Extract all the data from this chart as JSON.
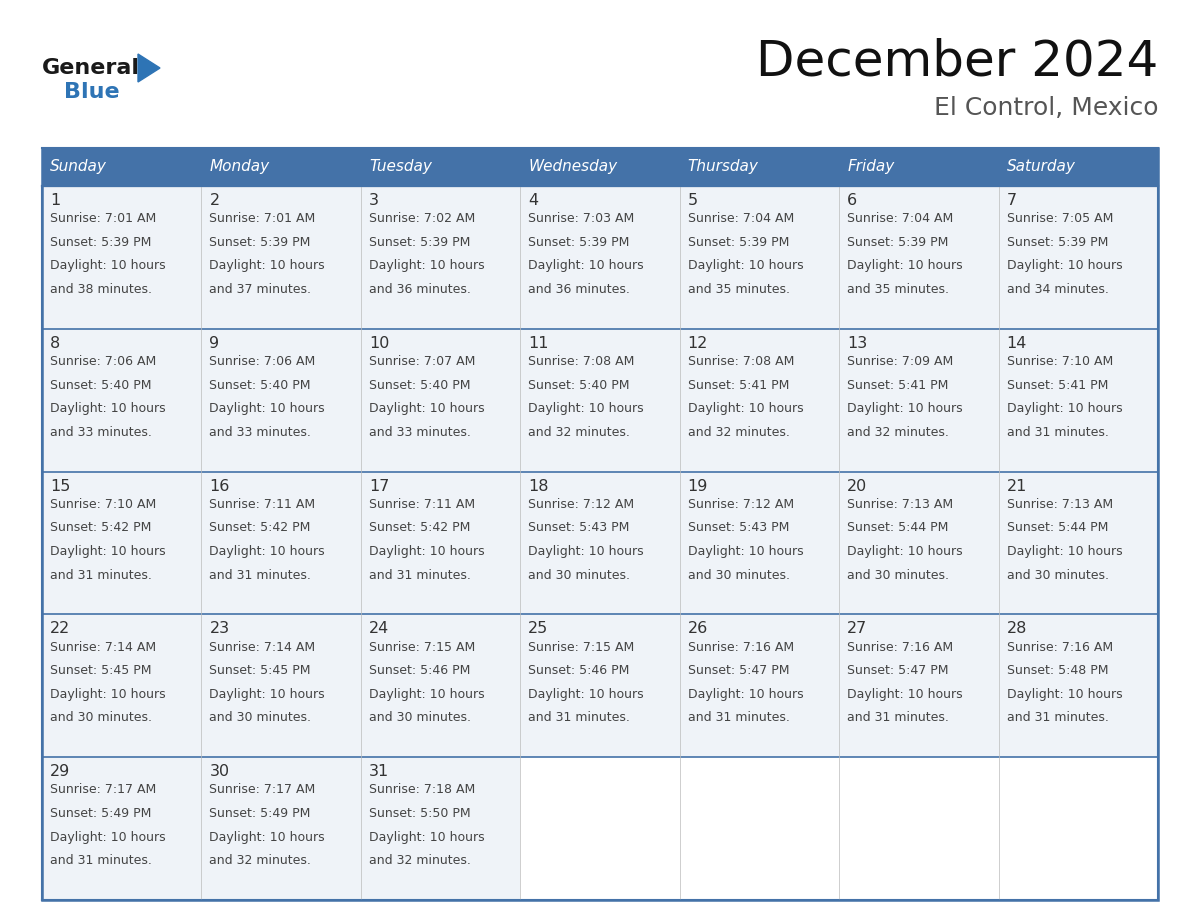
{
  "title": "December 2024",
  "subtitle": "El Control, Mexico",
  "header_bg_color": "#4472a8",
  "header_text_color": "#ffffff",
  "cell_bg_color": "#eff3f8",
  "cell_bg_empty": "#ffffff",
  "day_number_color": "#333333",
  "cell_text_color": "#444444",
  "border_color": "#4472a8",
  "row_border_color": "#4472a8",
  "col_border_color": "#cccccc",
  "days_of_week": [
    "Sunday",
    "Monday",
    "Tuesday",
    "Wednesday",
    "Thursday",
    "Friday",
    "Saturday"
  ],
  "logo_general_color": "#1a1a1a",
  "logo_blue_color": "#2e74b5",
  "calendar_data": [
    [
      {
        "day": 1,
        "sunrise": "7:01 AM",
        "sunset": "5:39 PM",
        "dl1": "Daylight: 10 hours",
        "dl2": "and 38 minutes."
      },
      {
        "day": 2,
        "sunrise": "7:01 AM",
        "sunset": "5:39 PM",
        "dl1": "Daylight: 10 hours",
        "dl2": "and 37 minutes."
      },
      {
        "day": 3,
        "sunrise": "7:02 AM",
        "sunset": "5:39 PM",
        "dl1": "Daylight: 10 hours",
        "dl2": "and 36 minutes."
      },
      {
        "day": 4,
        "sunrise": "7:03 AM",
        "sunset": "5:39 PM",
        "dl1": "Daylight: 10 hours",
        "dl2": "and 36 minutes."
      },
      {
        "day": 5,
        "sunrise": "7:04 AM",
        "sunset": "5:39 PM",
        "dl1": "Daylight: 10 hours",
        "dl2": "and 35 minutes."
      },
      {
        "day": 6,
        "sunrise": "7:04 AM",
        "sunset": "5:39 PM",
        "dl1": "Daylight: 10 hours",
        "dl2": "and 35 minutes."
      },
      {
        "day": 7,
        "sunrise": "7:05 AM",
        "sunset": "5:39 PM",
        "dl1": "Daylight: 10 hours",
        "dl2": "and 34 minutes."
      }
    ],
    [
      {
        "day": 8,
        "sunrise": "7:06 AM",
        "sunset": "5:40 PM",
        "dl1": "Daylight: 10 hours",
        "dl2": "and 33 minutes."
      },
      {
        "day": 9,
        "sunrise": "7:06 AM",
        "sunset": "5:40 PM",
        "dl1": "Daylight: 10 hours",
        "dl2": "and 33 minutes."
      },
      {
        "day": 10,
        "sunrise": "7:07 AM",
        "sunset": "5:40 PM",
        "dl1": "Daylight: 10 hours",
        "dl2": "and 33 minutes."
      },
      {
        "day": 11,
        "sunrise": "7:08 AM",
        "sunset": "5:40 PM",
        "dl1": "Daylight: 10 hours",
        "dl2": "and 32 minutes."
      },
      {
        "day": 12,
        "sunrise": "7:08 AM",
        "sunset": "5:41 PM",
        "dl1": "Daylight: 10 hours",
        "dl2": "and 32 minutes."
      },
      {
        "day": 13,
        "sunrise": "7:09 AM",
        "sunset": "5:41 PM",
        "dl1": "Daylight: 10 hours",
        "dl2": "and 32 minutes."
      },
      {
        "day": 14,
        "sunrise": "7:10 AM",
        "sunset": "5:41 PM",
        "dl1": "Daylight: 10 hours",
        "dl2": "and 31 minutes."
      }
    ],
    [
      {
        "day": 15,
        "sunrise": "7:10 AM",
        "sunset": "5:42 PM",
        "dl1": "Daylight: 10 hours",
        "dl2": "and 31 minutes."
      },
      {
        "day": 16,
        "sunrise": "7:11 AM",
        "sunset": "5:42 PM",
        "dl1": "Daylight: 10 hours",
        "dl2": "and 31 minutes."
      },
      {
        "day": 17,
        "sunrise": "7:11 AM",
        "sunset": "5:42 PM",
        "dl1": "Daylight: 10 hours",
        "dl2": "and 31 minutes."
      },
      {
        "day": 18,
        "sunrise": "7:12 AM",
        "sunset": "5:43 PM",
        "dl1": "Daylight: 10 hours",
        "dl2": "and 30 minutes."
      },
      {
        "day": 19,
        "sunrise": "7:12 AM",
        "sunset": "5:43 PM",
        "dl1": "Daylight: 10 hours",
        "dl2": "and 30 minutes."
      },
      {
        "day": 20,
        "sunrise": "7:13 AM",
        "sunset": "5:44 PM",
        "dl1": "Daylight: 10 hours",
        "dl2": "and 30 minutes."
      },
      {
        "day": 21,
        "sunrise": "7:13 AM",
        "sunset": "5:44 PM",
        "dl1": "Daylight: 10 hours",
        "dl2": "and 30 minutes."
      }
    ],
    [
      {
        "day": 22,
        "sunrise": "7:14 AM",
        "sunset": "5:45 PM",
        "dl1": "Daylight: 10 hours",
        "dl2": "and 30 minutes."
      },
      {
        "day": 23,
        "sunrise": "7:14 AM",
        "sunset": "5:45 PM",
        "dl1": "Daylight: 10 hours",
        "dl2": "and 30 minutes."
      },
      {
        "day": 24,
        "sunrise": "7:15 AM",
        "sunset": "5:46 PM",
        "dl1": "Daylight: 10 hours",
        "dl2": "and 30 minutes."
      },
      {
        "day": 25,
        "sunrise": "7:15 AM",
        "sunset": "5:46 PM",
        "dl1": "Daylight: 10 hours",
        "dl2": "and 31 minutes."
      },
      {
        "day": 26,
        "sunrise": "7:16 AM",
        "sunset": "5:47 PM",
        "dl1": "Daylight: 10 hours",
        "dl2": "and 31 minutes."
      },
      {
        "day": 27,
        "sunrise": "7:16 AM",
        "sunset": "5:47 PM",
        "dl1": "Daylight: 10 hours",
        "dl2": "and 31 minutes."
      },
      {
        "day": 28,
        "sunrise": "7:16 AM",
        "sunset": "5:48 PM",
        "dl1": "Daylight: 10 hours",
        "dl2": "and 31 minutes."
      }
    ],
    [
      {
        "day": 29,
        "sunrise": "7:17 AM",
        "sunset": "5:49 PM",
        "dl1": "Daylight: 10 hours",
        "dl2": "and 31 minutes."
      },
      {
        "day": 30,
        "sunrise": "7:17 AM",
        "sunset": "5:49 PM",
        "dl1": "Daylight: 10 hours",
        "dl2": "and 32 minutes."
      },
      {
        "day": 31,
        "sunrise": "7:18 AM",
        "sunset": "5:50 PM",
        "dl1": "Daylight: 10 hours",
        "dl2": "and 32 minutes."
      },
      null,
      null,
      null,
      null
    ]
  ]
}
